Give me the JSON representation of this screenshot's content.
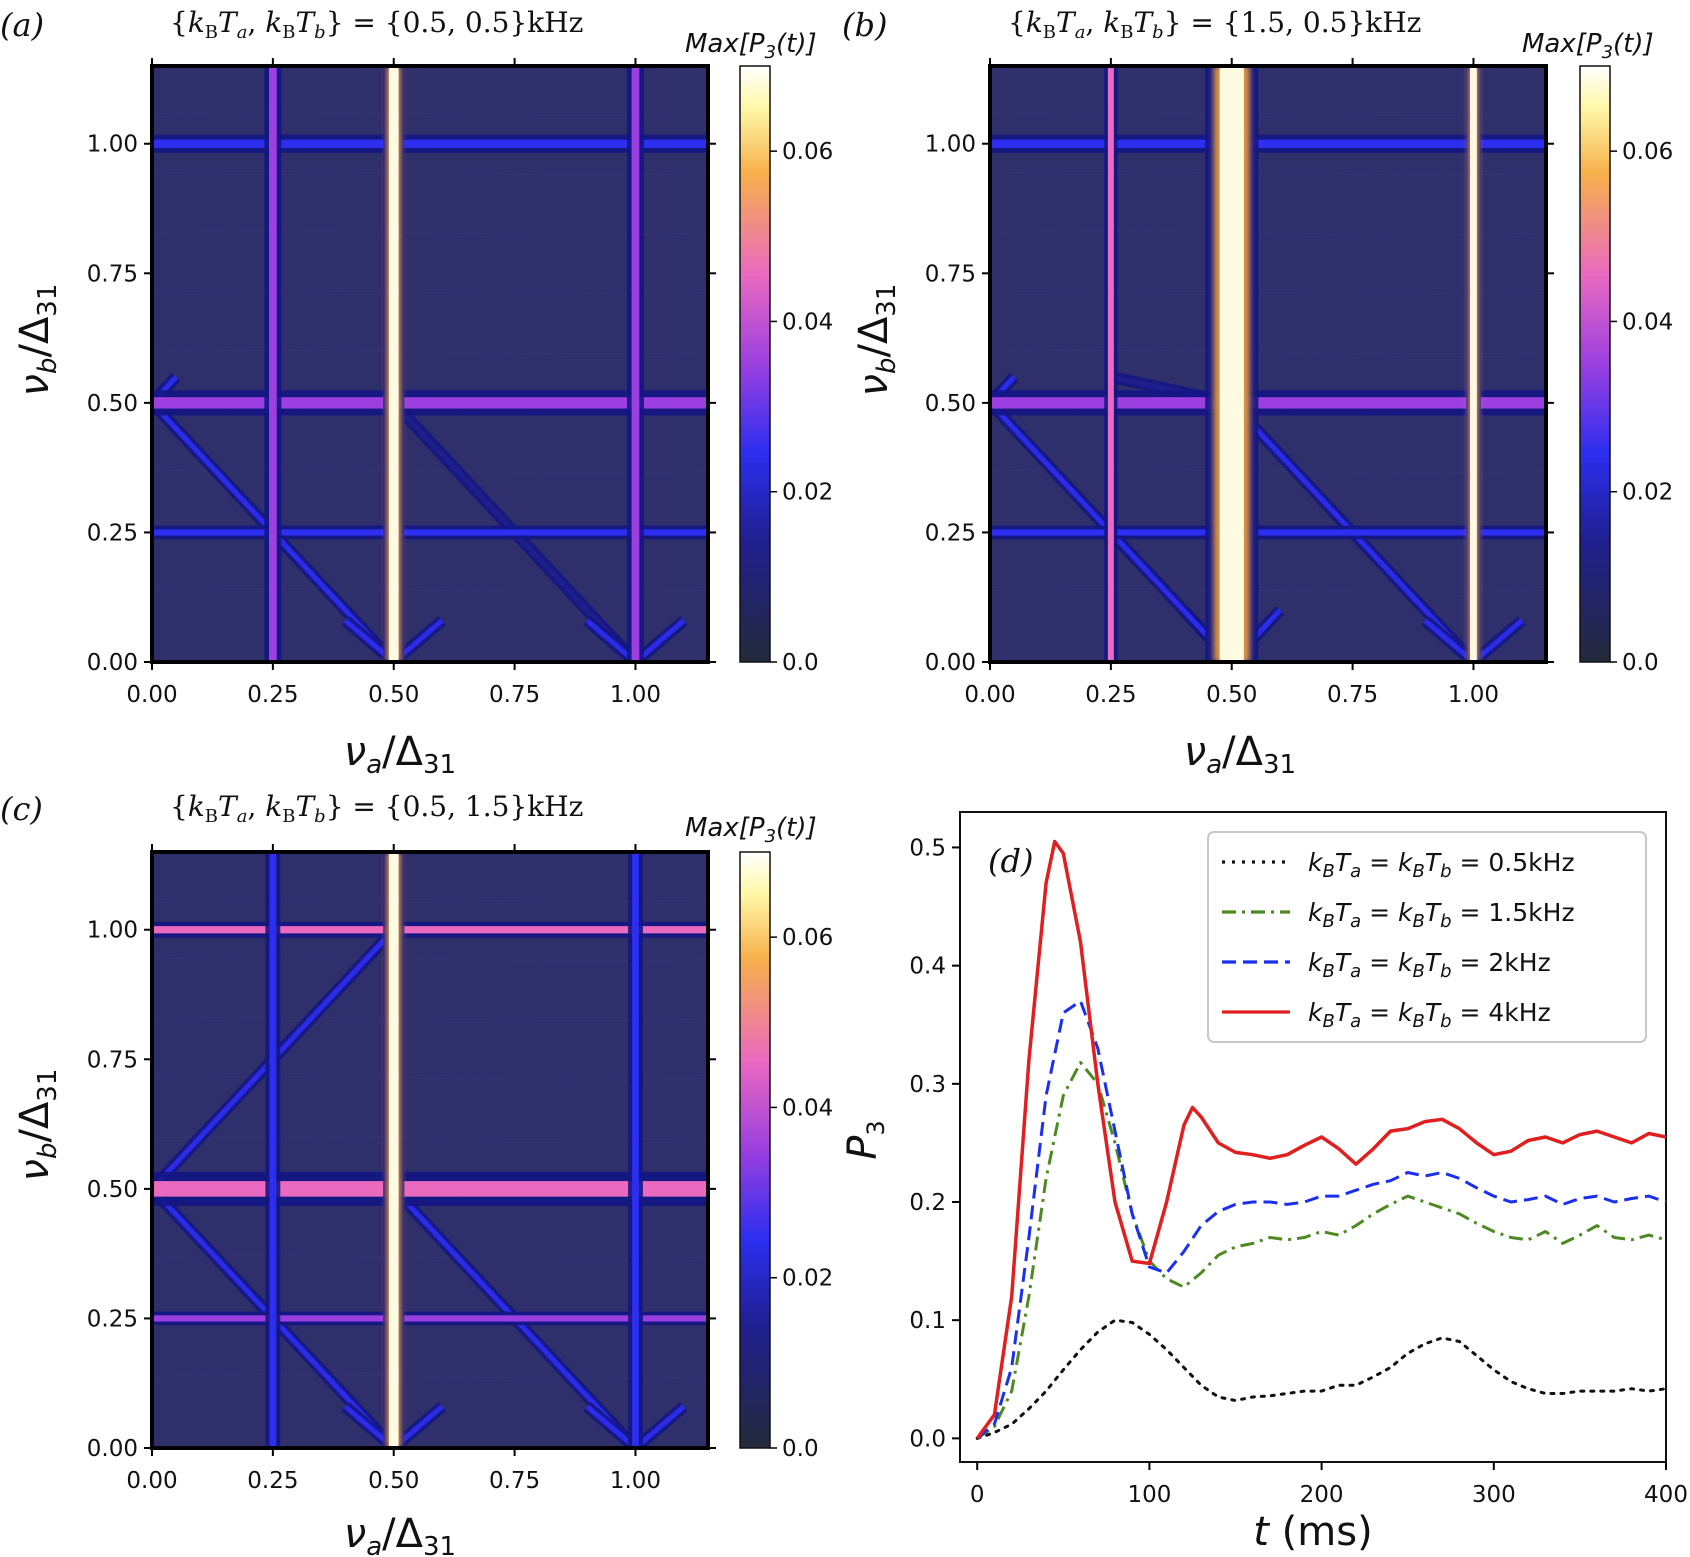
{
  "colors": {
    "heat_bg": "#2e2f6b",
    "heat_line": "#1f22c8",
    "heat_line_dark": "#141685",
    "heat_bright": "#fffbe3",
    "heat_orange": "#f3a53a",
    "line_black": "#111111",
    "line_green": "#4d8a22",
    "line_blue": "#1a2ff0",
    "line_red": "#e02020"
  },
  "colormap": {
    "name": "plasma-like",
    "stops": [
      [
        "#232a3a",
        0.0
      ],
      [
        "#1f1f8e",
        0.2
      ],
      [
        "#2c2ef0",
        0.35
      ],
      [
        "#9b3fe0",
        0.5
      ],
      [
        "#ea6ac0",
        0.65
      ],
      [
        "#f7b04a",
        0.82
      ],
      [
        "#fff8a8",
        0.93
      ],
      [
        "#ffffff",
        1.0
      ]
    ]
  },
  "heatmap_panels": [
    {
      "label": "(a)",
      "title": "{k_B T_a, k_B T_b} = {0.5, 0.5}kHz",
      "title_parts": {
        "open": "{",
        "v1": "k",
        "s1": "B",
        "v2": "T",
        "s2": "a",
        "sep": ", ",
        "v3": "k",
        "s3": "B",
        "v4": "T",
        "s4": "b",
        "close": "} = {0.5, 0.5}kHz"
      },
      "xlabel": "ν_a/Δ_31",
      "ylabel": "ν_b/Δ_31",
      "xticks": [
        "0.00",
        "0.25",
        "0.50",
        "0.75",
        "1.00"
      ],
      "yticks": [
        "0.00",
        "0.25",
        "0.50",
        "0.75",
        "1.00"
      ],
      "range": [
        0,
        1.15
      ],
      "colorbar_title": "Max[P_3(t)]",
      "colorbar_ticks": [
        "0.0",
        "0.02",
        "0.04",
        "0.06"
      ],
      "colorbar_range": [
        0,
        0.07
      ],
      "features": {
        "vertical_lines": [
          {
            "x": 0.25,
            "w": 0.016,
            "strength": 0.4
          },
          {
            "x": 0.5,
            "w": 0.02,
            "strength": 1.0
          },
          {
            "x": 1.0,
            "w": 0.016,
            "strength": 0.4
          }
        ],
        "horizontal_lines": [
          {
            "y": 0.25,
            "w": 0.012,
            "strength": 0.3
          },
          {
            "y": 0.5,
            "w": 0.022,
            "strength": 0.45
          },
          {
            "y": 1.0,
            "w": 0.016,
            "strength": 0.35
          }
        ],
        "diagonals": [
          {
            "x0": 0.0,
            "y0": 0.5,
            "x1": 0.5,
            "y1": 0.0,
            "strength": 0.35
          },
          {
            "x0": 0.5,
            "y0": 0.5,
            "x1": 1.0,
            "y1": 0.0,
            "strength": 0.2
          },
          {
            "x0": 0.0,
            "y0": 0.5,
            "x1": 0.05,
            "y1": 0.55,
            "strength": 0.3
          },
          {
            "x0": 0.5,
            "y0": 0.0,
            "x1": 0.6,
            "y1": 0.08,
            "strength": 0.3
          },
          {
            "x0": 0.5,
            "y0": 0.0,
            "x1": 0.4,
            "y1": 0.08,
            "strength": 0.3
          },
          {
            "x0": 1.0,
            "y0": 0.0,
            "x1": 1.1,
            "y1": 0.08,
            "strength": 0.3
          },
          {
            "x0": 1.0,
            "y0": 0.0,
            "x1": 0.9,
            "y1": 0.08,
            "strength": 0.3
          }
        ]
      }
    },
    {
      "label": "(b)",
      "title": "{k_B T_a, k_B T_b} = {1.5, 0.5}kHz",
      "title_parts": {
        "open": "{",
        "v1": "k",
        "s1": "B",
        "v2": "T",
        "s2": "a",
        "sep": ", ",
        "v3": "k",
        "s3": "B",
        "v4": "T",
        "s4": "b",
        "close": "} = {1.5, 0.5}kHz"
      },
      "xlabel": "ν_a/Δ_31",
      "ylabel": "ν_b/Δ_31",
      "xticks": [
        "0.00",
        "0.25",
        "0.50",
        "0.75",
        "1.00"
      ],
      "yticks": [
        "0.00",
        "0.25",
        "0.50",
        "0.75",
        "1.00"
      ],
      "range": [
        0,
        1.15
      ],
      "colorbar_title": "Max[P_3(t)]",
      "colorbar_ticks": [
        "0.0",
        "0.02",
        "0.04",
        "0.06"
      ],
      "colorbar_range": [
        0,
        0.07
      ],
      "features": {
        "vertical_lines": [
          {
            "x": 0.25,
            "w": 0.01,
            "strength": 0.6
          },
          {
            "x": 0.5,
            "w": 0.05,
            "strength": 1.0
          },
          {
            "x": 1.0,
            "w": 0.014,
            "strength": 0.9
          }
        ],
        "horizontal_lines": [
          {
            "y": 0.25,
            "w": 0.012,
            "strength": 0.3
          },
          {
            "y": 0.5,
            "w": 0.022,
            "strength": 0.45
          },
          {
            "y": 1.0,
            "w": 0.016,
            "strength": 0.35
          }
        ],
        "diagonals": [
          {
            "x0": 0.0,
            "y0": 0.5,
            "x1": 0.5,
            "y1": 0.0,
            "strength": 0.35
          },
          {
            "x0": 0.5,
            "y0": 0.5,
            "x1": 1.0,
            "y1": 0.0,
            "strength": 0.35
          },
          {
            "x0": 0.25,
            "y0": 0.55,
            "x1": 0.5,
            "y1": 0.5,
            "strength": 0.2
          },
          {
            "x0": 0.5,
            "y0": 0.0,
            "x1": 0.6,
            "y1": 0.1,
            "strength": 0.3
          },
          {
            "x0": 0.5,
            "y0": 0.0,
            "x1": 0.4,
            "y1": 0.1,
            "strength": 0.3
          },
          {
            "x0": 1.0,
            "y0": 0.0,
            "x1": 1.1,
            "y1": 0.08,
            "strength": 0.3
          },
          {
            "x0": 1.0,
            "y0": 0.0,
            "x1": 0.9,
            "y1": 0.08,
            "strength": 0.3
          },
          {
            "x0": 0.0,
            "y0": 0.5,
            "x1": 0.05,
            "y1": 0.55,
            "strength": 0.3
          }
        ]
      }
    },
    {
      "label": "(c)",
      "title": "{k_B T_a, k_B T_b} = {0.5, 1.5}kHz",
      "title_parts": {
        "open": "{",
        "v1": "k",
        "s1": "B",
        "v2": "T",
        "s2": "a",
        "sep": ", ",
        "v3": "k",
        "s3": "B",
        "v4": "T",
        "s4": "b",
        "close": "} = {0.5, 1.5}kHz"
      },
      "xlabel": "ν_a/Δ_31",
      "ylabel": "ν_b/Δ_31",
      "xticks": [
        "0.00",
        "0.25",
        "0.50",
        "0.75",
        "1.00"
      ],
      "yticks": [
        "0.00",
        "0.25",
        "0.50",
        "0.75",
        "1.00"
      ],
      "range": [
        0,
        1.15
      ],
      "colorbar_title": "Max[P_3(t)]",
      "colorbar_ticks": [
        "0.0",
        "0.02",
        "0.04",
        "0.06"
      ],
      "colorbar_range": [
        0,
        0.07
      ],
      "features": {
        "vertical_lines": [
          {
            "x": 0.25,
            "w": 0.014,
            "strength": 0.3
          },
          {
            "x": 0.5,
            "w": 0.02,
            "strength": 1.0
          },
          {
            "x": 1.0,
            "w": 0.014,
            "strength": 0.3
          }
        ],
        "horizontal_lines": [
          {
            "y": 0.25,
            "w": 0.012,
            "strength": 0.45
          },
          {
            "y": 0.5,
            "w": 0.03,
            "strength": 0.6
          },
          {
            "y": 1.0,
            "w": 0.014,
            "strength": 0.55
          }
        ],
        "diagonals": [
          {
            "x0": 0.0,
            "y0": 0.5,
            "x1": 0.5,
            "y1": 0.0,
            "strength": 0.35
          },
          {
            "x0": 0.0,
            "y0": 0.5,
            "x1": 0.5,
            "y1": 1.0,
            "strength": 0.3
          },
          {
            "x0": 0.5,
            "y0": 0.5,
            "x1": 1.0,
            "y1": 0.0,
            "strength": 0.25
          },
          {
            "x0": 0.5,
            "y0": 0.0,
            "x1": 0.6,
            "y1": 0.08,
            "strength": 0.3
          },
          {
            "x0": 0.5,
            "y0": 0.0,
            "x1": 0.4,
            "y1": 0.08,
            "strength": 0.3
          },
          {
            "x0": 1.0,
            "y0": 0.0,
            "x1": 1.1,
            "y1": 0.08,
            "strength": 0.3
          },
          {
            "x0": 1.0,
            "y0": 0.0,
            "x1": 0.9,
            "y1": 0.08,
            "strength": 0.3
          }
        ]
      }
    }
  ],
  "chart_data": {
    "type": "line",
    "panel_label": "(d)",
    "xlabel": "t (ms)",
    "ylabel": "P_3",
    "xlim": [
      -10,
      400
    ],
    "ylim": [
      -0.02,
      0.53
    ],
    "xticks": [
      "0",
      "100",
      "200",
      "300",
      "400"
    ],
    "yticks": [
      "0.0",
      "0.1",
      "0.2",
      "0.3",
      "0.4",
      "0.5"
    ],
    "legend_placement": "top-right",
    "series": [
      {
        "name": "k_B T_a = k_B T_b = 0.5kHz",
        "legend_parts": {
          "a": "k",
          "as": "B",
          "b": "T",
          "bs": "a",
          "eq": " = ",
          "c": "k",
          "cs": "B",
          "d": "T",
          "ds": "b",
          "val": " = 0.5kHz"
        },
        "style": "dotted",
        "color": "#111111",
        "x": [
          0,
          10,
          20,
          30,
          40,
          50,
          60,
          70,
          80,
          90,
          100,
          110,
          120,
          130,
          140,
          150,
          160,
          170,
          180,
          190,
          200,
          210,
          220,
          230,
          240,
          250,
          260,
          270,
          280,
          290,
          300,
          310,
          320,
          330,
          340,
          350,
          360,
          370,
          380,
          390,
          400
        ],
        "y": [
          0.0,
          0.005,
          0.012,
          0.025,
          0.04,
          0.058,
          0.075,
          0.09,
          0.1,
          0.098,
          0.088,
          0.075,
          0.06,
          0.045,
          0.035,
          0.032,
          0.035,
          0.036,
          0.038,
          0.04,
          0.04,
          0.045,
          0.045,
          0.052,
          0.06,
          0.072,
          0.08,
          0.085,
          0.082,
          0.07,
          0.058,
          0.048,
          0.042,
          0.038,
          0.038,
          0.04,
          0.04,
          0.04,
          0.042,
          0.04,
          0.042
        ]
      },
      {
        "name": "k_B T_a = k_B T_b = 1.5kHz",
        "legend_parts": {
          "a": "k",
          "as": "B",
          "b": "T",
          "bs": "a",
          "eq": " = ",
          "c": "k",
          "cs": "B",
          "d": "T",
          "ds": "b",
          "val": " = 1.5kHz"
        },
        "style": "dashdot",
        "color": "#4d8a22",
        "x": [
          0,
          10,
          20,
          30,
          40,
          50,
          60,
          70,
          80,
          90,
          100,
          110,
          120,
          130,
          140,
          150,
          160,
          170,
          180,
          190,
          200,
          210,
          220,
          230,
          240,
          250,
          260,
          270,
          280,
          290,
          300,
          310,
          320,
          330,
          340,
          350,
          360,
          370,
          380,
          390,
          400
        ],
        "y": [
          0.0,
          0.01,
          0.04,
          0.12,
          0.22,
          0.29,
          0.318,
          0.3,
          0.25,
          0.19,
          0.15,
          0.135,
          0.128,
          0.14,
          0.155,
          0.162,
          0.165,
          0.17,
          0.168,
          0.17,
          0.175,
          0.172,
          0.18,
          0.19,
          0.198,
          0.205,
          0.2,
          0.195,
          0.19,
          0.182,
          0.175,
          0.17,
          0.168,
          0.175,
          0.165,
          0.172,
          0.18,
          0.17,
          0.168,
          0.172,
          0.168
        ]
      },
      {
        "name": "k_B T_a = k_B T_b = 2kHz",
        "legend_parts": {
          "a": "k",
          "as": "B",
          "b": "T",
          "bs": "a",
          "eq": " = ",
          "c": "k",
          "cs": "B",
          "d": "T",
          "ds": "b",
          "val": " = 2kHz"
        },
        "style": "dashed",
        "color": "#1a2ff0",
        "x": [
          0,
          10,
          20,
          30,
          40,
          50,
          60,
          70,
          80,
          90,
          100,
          110,
          120,
          130,
          140,
          150,
          160,
          170,
          180,
          190,
          200,
          210,
          220,
          230,
          240,
          250,
          260,
          270,
          280,
          290,
          300,
          310,
          320,
          330,
          340,
          350,
          360,
          370,
          380,
          390,
          400
        ],
        "y": [
          0.0,
          0.012,
          0.06,
          0.17,
          0.29,
          0.36,
          0.37,
          0.33,
          0.26,
          0.19,
          0.145,
          0.14,
          0.158,
          0.18,
          0.192,
          0.198,
          0.2,
          0.2,
          0.198,
          0.2,
          0.205,
          0.205,
          0.21,
          0.215,
          0.218,
          0.225,
          0.222,
          0.225,
          0.22,
          0.212,
          0.205,
          0.2,
          0.202,
          0.205,
          0.198,
          0.203,
          0.205,
          0.2,
          0.203,
          0.205,
          0.2
        ]
      },
      {
        "name": "k_B T_a = k_B T_b = 4kHz",
        "legend_parts": {
          "a": "k",
          "as": "B",
          "b": "T",
          "bs": "a",
          "eq": " = ",
          "c": "k",
          "cs": "B",
          "d": "T",
          "ds": "b",
          "val": " = 4kHz"
        },
        "style": "solid",
        "color": "#e02020",
        "x": [
          0,
          10,
          20,
          30,
          40,
          45,
          50,
          60,
          70,
          80,
          90,
          100,
          110,
          120,
          125,
          130,
          140,
          150,
          160,
          170,
          180,
          190,
          200,
          210,
          220,
          230,
          240,
          250,
          260,
          270,
          280,
          290,
          300,
          310,
          320,
          330,
          340,
          350,
          360,
          370,
          380,
          390,
          400
        ],
        "y": [
          0.0,
          0.02,
          0.12,
          0.32,
          0.47,
          0.505,
          0.495,
          0.42,
          0.3,
          0.2,
          0.15,
          0.148,
          0.2,
          0.265,
          0.28,
          0.272,
          0.25,
          0.242,
          0.24,
          0.237,
          0.24,
          0.248,
          0.255,
          0.245,
          0.232,
          0.245,
          0.26,
          0.262,
          0.268,
          0.27,
          0.262,
          0.25,
          0.24,
          0.243,
          0.252,
          0.255,
          0.25,
          0.257,
          0.26,
          0.255,
          0.25,
          0.258,
          0.255
        ]
      }
    ]
  }
}
